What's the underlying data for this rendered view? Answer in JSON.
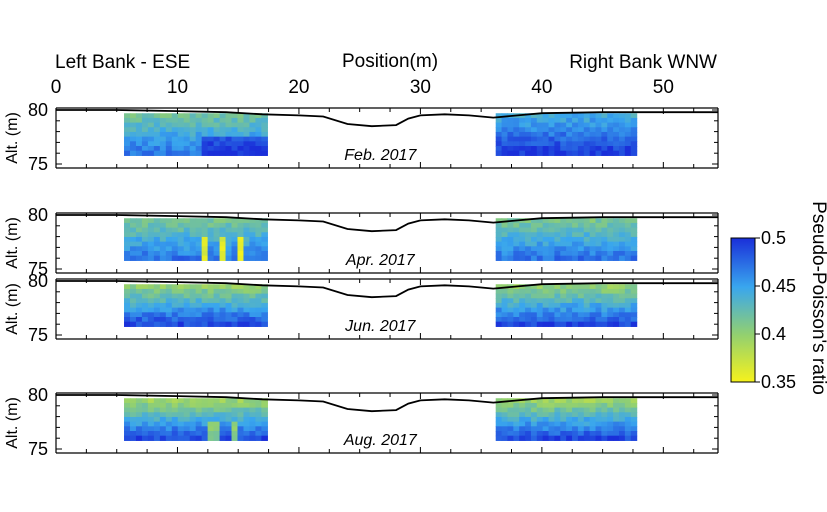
{
  "chart_data": {
    "type": "heatmap",
    "header": {
      "left_label": "Left Bank - ESE",
      "center_label": "Position(m)",
      "right_label": "Right Bank WNW"
    },
    "xlabel": "Position(m)",
    "ylabel": "Alt. (m)",
    "x_range": [
      0,
      54.5
    ],
    "y_range": [
      75,
      80
    ],
    "x_ticks": [
      0,
      10,
      20,
      30,
      40,
      50
    ],
    "y_ticks": [
      75,
      80
    ],
    "colorbar": {
      "label": "Pseudo-Poisson's ratio",
      "min": 0.35,
      "max": 0.5,
      "ticks": [
        "0.35",
        "0.4",
        "0.45",
        "0.5"
      ],
      "tick_values": [
        0.35,
        0.4,
        0.45,
        0.5
      ],
      "colors": [
        "#f6f21c",
        "#92d070",
        "#39a6ee",
        "#1a2fd9"
      ]
    },
    "profile": {
      "x": [
        0,
        5,
        10,
        14,
        17,
        20,
        22,
        24,
        26,
        28,
        29,
        30,
        32,
        34,
        36,
        38,
        40,
        45,
        50,
        54.5
      ],
      "z": [
        80,
        80,
        79.9,
        79.8,
        79.6,
        79.5,
        79.4,
        78.7,
        78.5,
        78.6,
        79.2,
        79.5,
        79.6,
        79.5,
        79.3,
        79.5,
        79.7,
        79.8,
        79.8,
        79.8
      ]
    },
    "left_section": {
      "x_range": [
        5.6,
        17.4
      ],
      "z_range": [
        75.8,
        79.7
      ]
    },
    "right_section": {
      "x_range": [
        36.2,
        47.8
      ],
      "z_range": [
        75.8,
        79.7
      ]
    },
    "panels": [
      {
        "label": "Feb. 2017",
        "pattern": "feb"
      },
      {
        "label": "Apr. 2017",
        "pattern": "apr"
      },
      {
        "label": "Jun. 2017",
        "pattern": "jun"
      },
      {
        "label": "Aug. 2017",
        "pattern": "aug"
      }
    ]
  }
}
